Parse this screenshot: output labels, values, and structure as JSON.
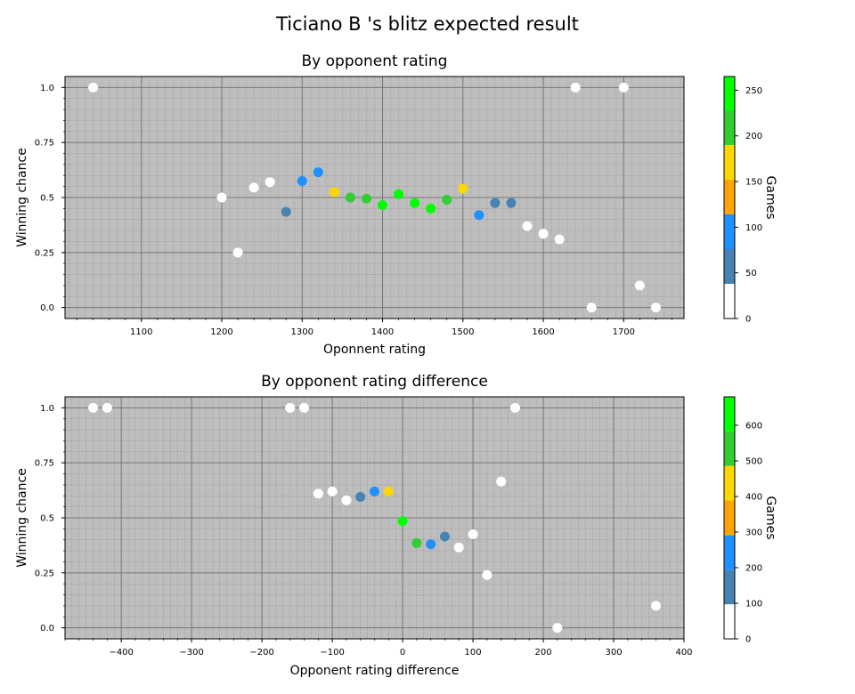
{
  "title": "Ticiano B 's blitz expected result",
  "chart_data": [
    {
      "type": "scatter",
      "title": "By opponent rating",
      "xlabel": "Oponnent rating",
      "ylabel": "Winning chance",
      "xlim": [
        1005,
        1775
      ],
      "ylim": [
        -0.05,
        1.05
      ],
      "xticks": [
        1100,
        1200,
        1300,
        1400,
        1500,
        1600,
        1700
      ],
      "yticks": [
        0.0,
        0.25,
        0.5,
        0.75,
        1.0
      ],
      "xtick_labels": [
        "1100",
        "1200",
        "1300",
        "1400",
        "1500",
        "1600",
        "1700"
      ],
      "ytick_labels": [
        "0.0",
        "0.25",
        "0.5",
        "0.75",
        "1.0"
      ],
      "grid": true,
      "colorbar": {
        "label": "Games",
        "max": 265,
        "ticks": [
          0,
          50,
          100,
          150,
          200,
          250
        ],
        "tick_labels": [
          "0",
          "50",
          "100",
          "150",
          "200",
          "250"
        ],
        "bins": [
          {
            "from": 0,
            "to": 38,
            "color": "#ffffff"
          },
          {
            "from": 38,
            "to": 76,
            "color": "#4682b4"
          },
          {
            "from": 76,
            "to": 114,
            "color": "#1e90ff"
          },
          {
            "from": 114,
            "to": 152,
            "color": "#ffa500"
          },
          {
            "from": 152,
            "to": 190,
            "color": "#ffd700"
          },
          {
            "from": 190,
            "to": 228,
            "color": "#32cd32"
          },
          {
            "from": 228,
            "to": 265,
            "color": "#00ff00"
          }
        ]
      },
      "points": [
        {
          "x": 1040,
          "y": 1.0,
          "color": "#ffffff"
        },
        {
          "x": 1200,
          "y": 0.5,
          "color": "#ffffff"
        },
        {
          "x": 1220,
          "y": 0.25,
          "color": "#ffffff"
        },
        {
          "x": 1240,
          "y": 0.545,
          "color": "#ffffff"
        },
        {
          "x": 1260,
          "y": 0.57,
          "color": "#ffffff"
        },
        {
          "x": 1280,
          "y": 0.435,
          "color": "#4682b4"
        },
        {
          "x": 1300,
          "y": 0.575,
          "color": "#1e90ff"
        },
        {
          "x": 1320,
          "y": 0.615,
          "color": "#1e90ff"
        },
        {
          "x": 1340,
          "y": 0.525,
          "color": "#ffd700"
        },
        {
          "x": 1360,
          "y": 0.5,
          "color": "#32cd32"
        },
        {
          "x": 1380,
          "y": 0.495,
          "color": "#32cd32"
        },
        {
          "x": 1400,
          "y": 0.465,
          "color": "#00ff00"
        },
        {
          "x": 1420,
          "y": 0.515,
          "color": "#00ff00"
        },
        {
          "x": 1440,
          "y": 0.475,
          "color": "#00ff00"
        },
        {
          "x": 1460,
          "y": 0.45,
          "color": "#00ff00"
        },
        {
          "x": 1480,
          "y": 0.49,
          "color": "#32cd32"
        },
        {
          "x": 1500,
          "y": 0.54,
          "color": "#ffd700"
        },
        {
          "x": 1520,
          "y": 0.42,
          "color": "#1e90ff"
        },
        {
          "x": 1540,
          "y": 0.475,
          "color": "#4682b4"
        },
        {
          "x": 1560,
          "y": 0.475,
          "color": "#4682b4"
        },
        {
          "x": 1580,
          "y": 0.37,
          "color": "#ffffff"
        },
        {
          "x": 1600,
          "y": 0.335,
          "color": "#ffffff"
        },
        {
          "x": 1620,
          "y": 0.31,
          "color": "#ffffff"
        },
        {
          "x": 1640,
          "y": 1.0,
          "color": "#ffffff"
        },
        {
          "x": 1660,
          "y": 0.0,
          "color": "#ffffff"
        },
        {
          "x": 1700,
          "y": 1.0,
          "color": "#ffffff"
        },
        {
          "x": 1720,
          "y": 0.1,
          "color": "#ffffff"
        },
        {
          "x": 1740,
          "y": 0.0,
          "color": "#ffffff"
        }
      ]
    },
    {
      "type": "scatter",
      "title": "By opponent rating difference",
      "xlabel": "Opponent rating difference",
      "ylabel": "Winning chance",
      "xlim": [
        -480,
        400
      ],
      "ylim": [
        -0.05,
        1.05
      ],
      "xticks": [
        -400,
        -300,
        -200,
        -100,
        0,
        100,
        200,
        300,
        400
      ],
      "yticks": [
        0.0,
        0.25,
        0.5,
        0.75,
        1.0
      ],
      "xtick_labels": [
        "−400",
        "−300",
        "−200",
        "−100",
        "0",
        "100",
        "200",
        "300",
        "400"
      ],
      "ytick_labels": [
        "0.0",
        "0.25",
        "0.5",
        "0.75",
        "1.0"
      ],
      "grid": true,
      "colorbar": {
        "label": "Games",
        "max": 680,
        "ticks": [
          0,
          100,
          200,
          300,
          400,
          500,
          600
        ],
        "tick_labels": [
          "0",
          "100",
          "200",
          "300",
          "400",
          "500",
          "600"
        ],
        "bins": [
          {
            "from": 0,
            "to": 97,
            "color": "#ffffff"
          },
          {
            "from": 97,
            "to": 194,
            "color": "#4682b4"
          },
          {
            "from": 194,
            "to": 291,
            "color": "#1e90ff"
          },
          {
            "from": 291,
            "to": 389,
            "color": "#ffa500"
          },
          {
            "from": 389,
            "to": 486,
            "color": "#ffd700"
          },
          {
            "from": 486,
            "to": 583,
            "color": "#32cd32"
          },
          {
            "from": 583,
            "to": 680,
            "color": "#00ff00"
          }
        ]
      },
      "points": [
        {
          "x": -440,
          "y": 1.0,
          "color": "#ffffff"
        },
        {
          "x": -420,
          "y": 1.0,
          "color": "#ffffff"
        },
        {
          "x": -160,
          "y": 1.0,
          "color": "#ffffff"
        },
        {
          "x": -140,
          "y": 1.0,
          "color": "#ffffff"
        },
        {
          "x": -120,
          "y": 0.61,
          "color": "#ffffff"
        },
        {
          "x": -100,
          "y": 0.62,
          "color": "#ffffff"
        },
        {
          "x": -80,
          "y": 0.58,
          "color": "#ffffff"
        },
        {
          "x": -60,
          "y": 0.595,
          "color": "#4682b4"
        },
        {
          "x": -40,
          "y": 0.62,
          "color": "#1e90ff"
        },
        {
          "x": -20,
          "y": 0.62,
          "color": "#ffd700"
        },
        {
          "x": 0,
          "y": 0.485,
          "color": "#00ff00"
        },
        {
          "x": 20,
          "y": 0.385,
          "color": "#32cd32"
        },
        {
          "x": 40,
          "y": 0.38,
          "color": "#1e90ff"
        },
        {
          "x": 60,
          "y": 0.415,
          "color": "#4682b4"
        },
        {
          "x": 80,
          "y": 0.365,
          "color": "#ffffff"
        },
        {
          "x": 100,
          "y": 0.425,
          "color": "#ffffff"
        },
        {
          "x": 120,
          "y": 0.24,
          "color": "#ffffff"
        },
        {
          "x": 140,
          "y": 0.665,
          "color": "#ffffff"
        },
        {
          "x": 160,
          "y": 1.0,
          "color": "#ffffff"
        },
        {
          "x": 220,
          "y": 0.0,
          "color": "#ffffff"
        },
        {
          "x": 360,
          "y": 0.1,
          "color": "#ffffff"
        }
      ]
    }
  ]
}
